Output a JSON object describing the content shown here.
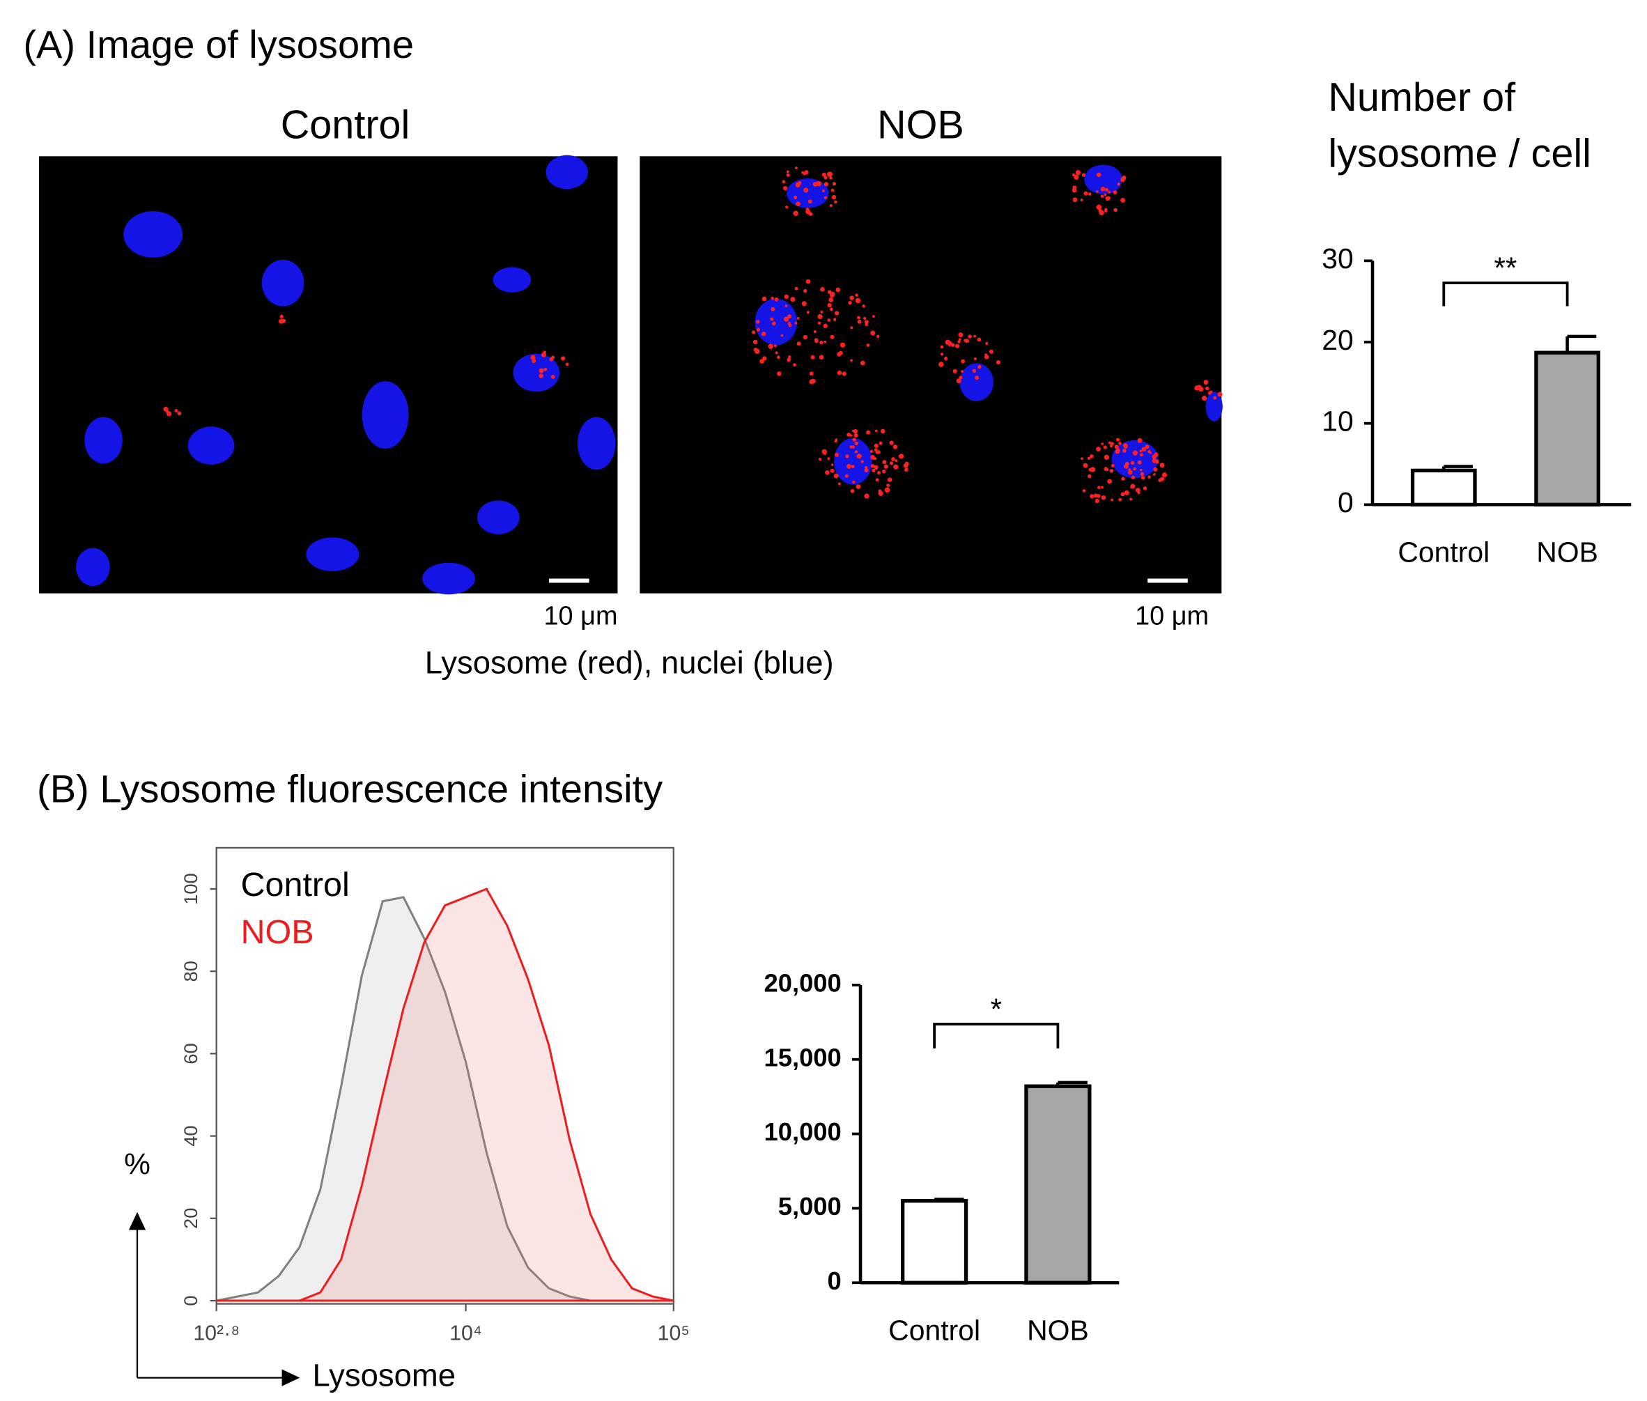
{
  "panel_a": {
    "title": "(A) Image of lysosome",
    "images": [
      {
        "label": "Control",
        "scale_bar": "10 μm"
      },
      {
        "label": "NOB",
        "scale_bar": "10 μm"
      }
    ],
    "caption": "Lysosome (red), nuclei (blue)"
  },
  "panel_b": {
    "title": "(B) Lysosome fluorescence intensity"
  },
  "chart_data": [
    {
      "type": "bar",
      "title": [
        "Number of",
        "lysosome / cell"
      ],
      "categories": [
        "Control",
        "NOB"
      ],
      "values": [
        4.2,
        18.7
      ],
      "errors": [
        0.5,
        2.0
      ],
      "colors": [
        "#ffffff",
        "#a6a6a6"
      ],
      "ylim": [
        0,
        30
      ],
      "yticks": [
        0,
        10,
        20,
        30
      ],
      "significance": "**"
    },
    {
      "type": "histogram_line",
      "log_x": true,
      "xlabel": "Lysosome",
      "ylabel": "%",
      "x": [
        631,
        794,
        1000,
        1259,
        1585,
        1995,
        2512,
        3162,
        3981,
        5012,
        6310,
        7943,
        10000,
        12589,
        15849,
        19953,
        25119,
        31623,
        39811,
        50119,
        63096,
        79433,
        100000
      ],
      "series": [
        {
          "name": "Control",
          "color": "#808080",
          "fill": "rgba(190,190,190,0.25)",
          "values": [
            0,
            1,
            2,
            6,
            13,
            27,
            52,
            79,
            97,
            98,
            88,
            75,
            58,
            36,
            18,
            8,
            3,
            1,
            0,
            0,
            0,
            0,
            0
          ]
        },
        {
          "name": "NOB",
          "color": "#ee1c1c",
          "fill": "rgba(240,110,110,0.18)",
          "values": [
            0,
            0,
            0,
            0,
            0,
            2,
            10,
            28,
            50,
            71,
            87,
            96,
            98,
            100,
            91,
            78,
            62,
            39,
            21,
            10,
            3,
            1,
            0
          ]
        }
      ],
      "xlim": [
        631,
        100000
      ],
      "xticks": [
        {
          "value": 631,
          "label": "10²·⁸"
        },
        {
          "value": 10000,
          "label": "10⁴"
        },
        {
          "value": 100000,
          "label": "10⁵"
        }
      ],
      "ylim": [
        0,
        110
      ],
      "yticks": [
        0,
        20,
        40,
        60,
        80,
        100
      ]
    },
    {
      "type": "bar",
      "categories": [
        "Control",
        "NOB"
      ],
      "values": [
        5500,
        13200
      ],
      "errors": [
        100,
        250
      ],
      "colors": [
        "#ffffff",
        "#a6a6a6"
      ],
      "ylim": [
        0,
        20000
      ],
      "yticks": [
        0,
        {
          "value": 5000,
          "label": "5,000"
        },
        {
          "value": 10000,
          "label": "10,000"
        },
        {
          "value": 15000,
          "label": "15,000"
        },
        {
          "value": 20000,
          "label": "20,000"
        }
      ],
      "significance": "*"
    }
  ]
}
